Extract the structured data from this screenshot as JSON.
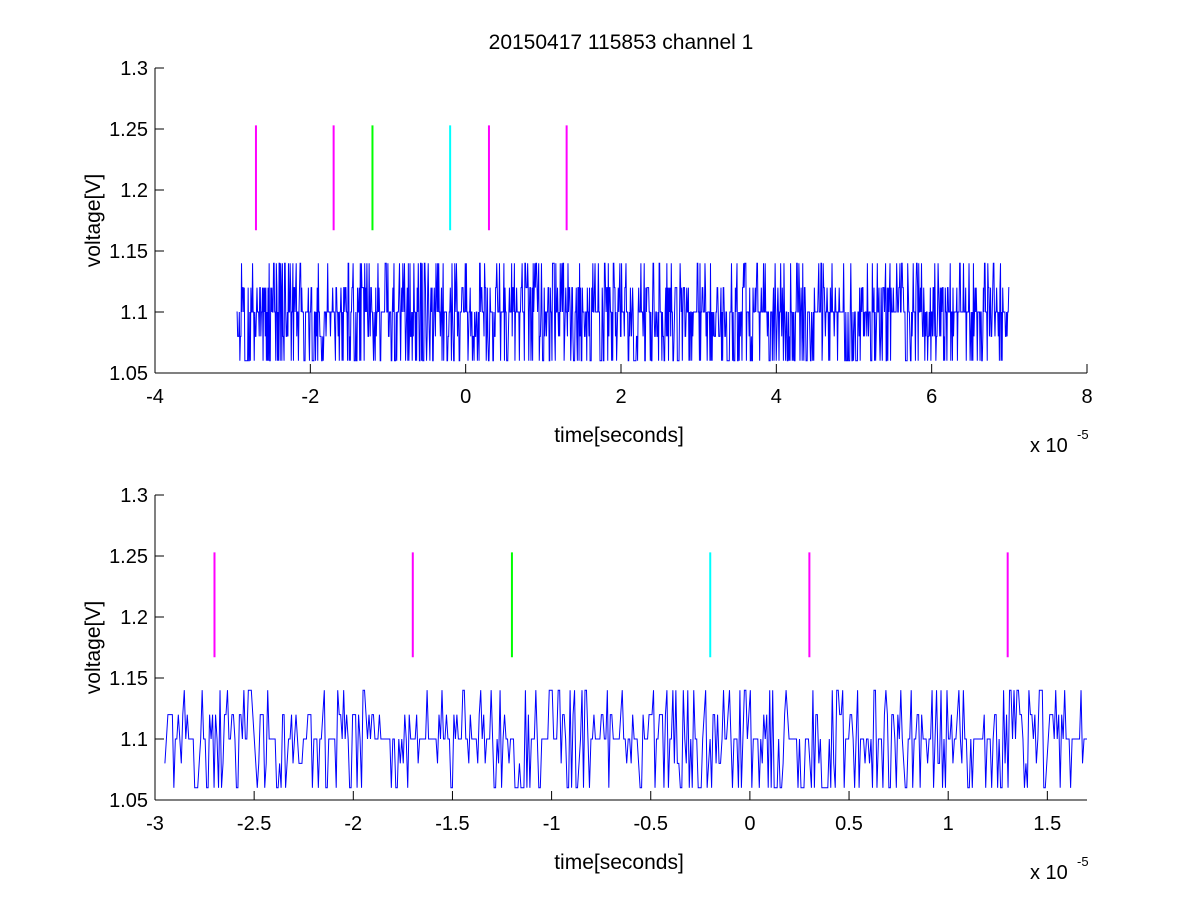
{
  "figure_title": "20150417 115853 channel 1",
  "colors": {
    "signal": "#0000ff",
    "magenta": "#ff00ff",
    "green": "#00ff00",
    "cyan": "#00ffff",
    "axes": "#000000",
    "background": "#ffffff"
  },
  "chart_data": [
    {
      "type": "line",
      "title": "20150417 115853 channel 1",
      "xlabel": "time[seconds]",
      "ylabel": "voltage[V]",
      "x_exponent_label": "x 10",
      "x_exponent_power": "-5",
      "xlim": [
        -4,
        8
      ],
      "ylim": [
        1.05,
        1.3
      ],
      "xticks": [
        -4,
        -2,
        0,
        2,
        4,
        6,
        8
      ],
      "xtick_labels": [
        "-4",
        "-2",
        "0",
        "2",
        "4",
        "6",
        "8"
      ],
      "yticks": [
        1.05,
        1.1,
        1.15,
        1.2,
        1.25,
        1.3
      ],
      "ytick_labels": [
        "1.05",
        "1.1",
        "1.15",
        "1.2",
        "1.25",
        "1.3"
      ],
      "grid": false,
      "legend": "none",
      "signal": {
        "color": "blue",
        "x_start": -2.95,
        "x_end": 7.0,
        "levels": [
          1.06,
          1.08,
          1.1,
          1.12,
          1.14
        ],
        "baseline": 1.1
      },
      "markers": [
        {
          "x": -2.7,
          "y_bottom": 1.167,
          "y_top": 1.253,
          "color": "magenta"
        },
        {
          "x": -1.7,
          "y_bottom": 1.167,
          "y_top": 1.253,
          "color": "magenta"
        },
        {
          "x": -1.2,
          "y_bottom": 1.167,
          "y_top": 1.253,
          "color": "green"
        },
        {
          "x": -0.2,
          "y_bottom": 1.167,
          "y_top": 1.253,
          "color": "cyan"
        },
        {
          "x": 0.3,
          "y_bottom": 1.167,
          "y_top": 1.253,
          "color": "magenta"
        },
        {
          "x": 1.3,
          "y_bottom": 1.167,
          "y_top": 1.253,
          "color": "magenta"
        }
      ]
    },
    {
      "type": "line",
      "title": "",
      "xlabel": "time[seconds]",
      "ylabel": "voltage[V]",
      "x_exponent_label": "x 10",
      "x_exponent_power": "-5",
      "xlim": [
        -3.0,
        1.7
      ],
      "ylim": [
        1.05,
        1.3
      ],
      "xticks": [
        -3,
        -2.5,
        -2,
        -1.5,
        -1,
        -0.5,
        0,
        0.5,
        1,
        1.5
      ],
      "xtick_labels": [
        "-3",
        "-2.5",
        "-2",
        "-1.5",
        "-1",
        "-0.5",
        "0",
        "0.5",
        "1",
        "1.5"
      ],
      "yticks": [
        1.05,
        1.1,
        1.15,
        1.2,
        1.25,
        1.3
      ],
      "ytick_labels": [
        "1.05",
        "1.1",
        "1.15",
        "1.2",
        "1.25",
        "1.3"
      ],
      "grid": false,
      "legend": "none",
      "signal": {
        "color": "blue",
        "x_start": -2.95,
        "x_end": 1.7,
        "levels": [
          1.06,
          1.08,
          1.1,
          1.12,
          1.14
        ],
        "baseline": 1.1
      },
      "markers": [
        {
          "x": -2.7,
          "y_bottom": 1.167,
          "y_top": 1.253,
          "color": "magenta"
        },
        {
          "x": -1.7,
          "y_bottom": 1.167,
          "y_top": 1.253,
          "color": "magenta"
        },
        {
          "x": -1.2,
          "y_bottom": 1.167,
          "y_top": 1.253,
          "color": "green"
        },
        {
          "x": -0.2,
          "y_bottom": 1.167,
          "y_top": 1.253,
          "color": "cyan"
        },
        {
          "x": 0.3,
          "y_bottom": 1.167,
          "y_top": 1.253,
          "color": "magenta"
        },
        {
          "x": 1.3,
          "y_bottom": 1.167,
          "y_top": 1.253,
          "color": "magenta"
        }
      ]
    }
  ]
}
